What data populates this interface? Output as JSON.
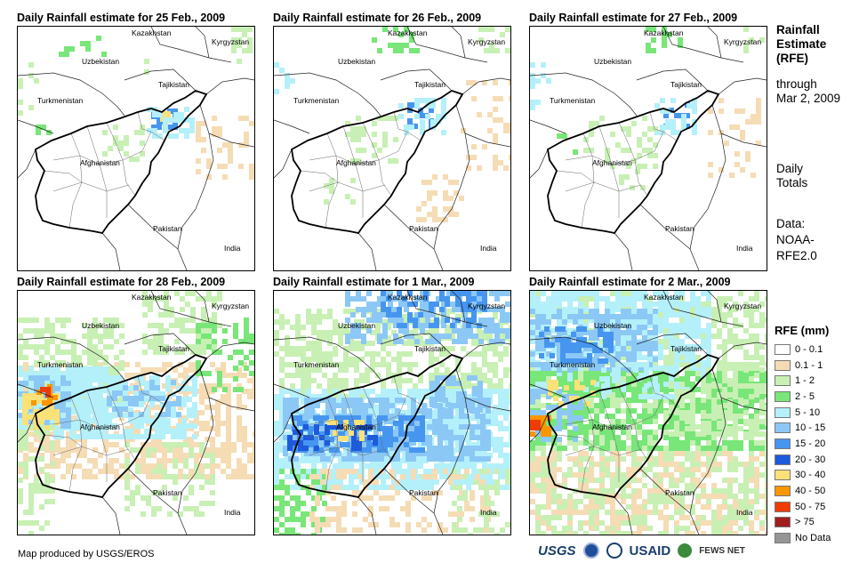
{
  "panels": [
    {
      "title": "Daily Rainfall estimate for 25 Feb., 2009",
      "day": "25feb"
    },
    {
      "title": "Daily Rainfall estimate for 26 Feb., 2009",
      "day": "26feb"
    },
    {
      "title": "Daily Rainfall estimate for 27 Feb., 2009",
      "day": "27feb"
    },
    {
      "title": "Daily Rainfall estimate for 28 Feb., 2009",
      "day": "28feb"
    },
    {
      "title": "Daily Rainfall estimate for 1 Mar., 2009",
      "day": "1mar"
    },
    {
      "title": "Daily Rainfall estimate for 2 Mar., 2009",
      "day": "2mar"
    }
  ],
  "map_labels": {
    "kazakhstan": "Kazakhstan",
    "kyrgyzstan": "Kyrgyzstan",
    "uzbekistan": "Uzbekistan",
    "tajikistan": "Tajikistan",
    "turkmenistan": "Turkmenistan",
    "afghanistan": "Afghanistan",
    "pakistan": "Pakistan",
    "india": "India"
  },
  "side": {
    "title_lines": [
      "Rainfall",
      "Estimate",
      "(RFE)"
    ],
    "through_lines": [
      "through",
      "Mar 2, 2009"
    ],
    "totals_lines": [
      "Daily",
      "Totals"
    ],
    "data_lines": [
      "Data:",
      "NOAA-",
      "RFE2.0"
    ]
  },
  "legend": {
    "title": "RFE (mm)",
    "items": [
      {
        "label": "0 - 0.1",
        "color": "#ffffff"
      },
      {
        "label": "0.1 - 1",
        "color": "#f5dcb4"
      },
      {
        "label": "1 - 2",
        "color": "#c8f0b4"
      },
      {
        "label": "2 - 5",
        "color": "#78e678"
      },
      {
        "label": "5 - 10",
        "color": "#b4f0fa"
      },
      {
        "label": "10 - 15",
        "color": "#8cc8f5"
      },
      {
        "label": "15 - 20",
        "color": "#4696f0"
      },
      {
        "label": "20 - 30",
        "color": "#1e5adc"
      },
      {
        "label": "30 - 40",
        "color": "#fae178"
      },
      {
        "label": "40 - 50",
        "color": "#fa9600"
      },
      {
        "label": "50 - 75",
        "color": "#f03c00"
      },
      {
        "label": "> 75",
        "color": "#a01e1e"
      },
      {
        "label": "No Data",
        "color": "#969696"
      }
    ]
  },
  "footer": {
    "credit": "Map produced by USGS/EROS",
    "logo_usgs": "USGS",
    "logo_usaid": "USAID",
    "logo_fews": "FEWS NET"
  }
}
